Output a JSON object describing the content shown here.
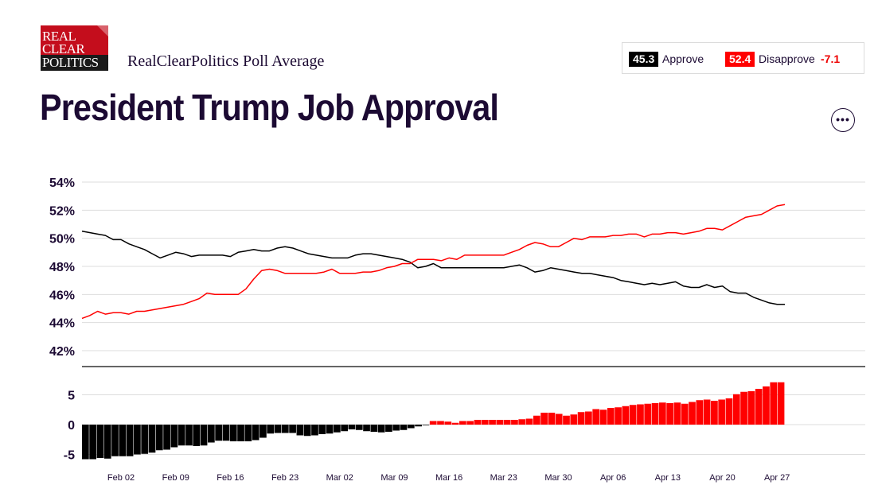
{
  "header": {
    "logo_line1": "REAL",
    "logo_line2": "CLEAR",
    "logo_line3": "POLITICS",
    "subtitle": "RealClearPolitics Poll Average",
    "title": "President Trump Job Approval",
    "more_label": "•••"
  },
  "legend": {
    "approve_value": "45.3",
    "approve_label": "Approve",
    "disapprove_value": "52.4",
    "disapprove_label": "Disapprove",
    "spread": "-7.1"
  },
  "colors": {
    "approve": "#000000",
    "disapprove": "#ff0000",
    "title": "#1c0a33"
  },
  "chart_data": [
    {
      "type": "line",
      "ylim": [
        42,
        54
      ],
      "yticks": [
        "42%",
        "44%",
        "46%",
        "48%",
        "50%",
        "52%",
        "54%"
      ],
      "ytick_values": [
        42,
        44,
        46,
        48,
        50,
        52,
        54
      ],
      "x_day_range": [
        0,
        91
      ],
      "x_ticks": [
        "Feb 02",
        "Feb 09",
        "Feb 16",
        "Feb 23",
        "Mar 02",
        "Mar 09",
        "Mar 16",
        "Mar 23",
        "Mar 30",
        "Apr 06",
        "Apr 13",
        "Apr 20",
        "Apr 27"
      ],
      "x_tick_days": [
        5,
        12,
        19,
        26,
        33,
        40,
        47,
        54,
        61,
        68,
        75,
        82,
        89
      ],
      "grid": true,
      "series": [
        {
          "name": "Approve",
          "color": "#000000",
          "points": [
            [
              0,
              50.5
            ],
            [
              2,
              50.3
            ],
            [
              3,
              50.2
            ],
            [
              4,
              49.9
            ],
            [
              5,
              49.9
            ],
            [
              6,
              49.6
            ],
            [
              7,
              49.4
            ],
            [
              8,
              49.2
            ],
            [
              9,
              48.9
            ],
            [
              10,
              48.6
            ],
            [
              11,
              48.8
            ],
            [
              12,
              49.0
            ],
            [
              13,
              48.9
            ],
            [
              14,
              48.7
            ],
            [
              15,
              48.8
            ],
            [
              16,
              48.8
            ],
            [
              17,
              48.8
            ],
            [
              18,
              48.8
            ],
            [
              19,
              48.7
            ],
            [
              20,
              49.0
            ],
            [
              21,
              49.1
            ],
            [
              22,
              49.2
            ],
            [
              23,
              49.1
            ],
            [
              24,
              49.1
            ],
            [
              25,
              49.3
            ],
            [
              26,
              49.4
            ],
            [
              27,
              49.3
            ],
            [
              28,
              49.1
            ],
            [
              29,
              48.9
            ],
            [
              30,
              48.8
            ],
            [
              31,
              48.7
            ],
            [
              32,
              48.6
            ],
            [
              33,
              48.6
            ],
            [
              34,
              48.6
            ],
            [
              35,
              48.8
            ],
            [
              36,
              48.9
            ],
            [
              37,
              48.9
            ],
            [
              38,
              48.8
            ],
            [
              39,
              48.7
            ],
            [
              40,
              48.6
            ],
            [
              41,
              48.5
            ],
            [
              42,
              48.3
            ],
            [
              43,
              47.9
            ],
            [
              44,
              48.0
            ],
            [
              45,
              48.2
            ],
            [
              46,
              47.9
            ],
            [
              47,
              47.9
            ],
            [
              48,
              47.9
            ],
            [
              49,
              47.9
            ],
            [
              50,
              47.9
            ],
            [
              51,
              47.9
            ],
            [
              52,
              47.9
            ],
            [
              53,
              47.9
            ],
            [
              54,
              47.9
            ],
            [
              55,
              48.0
            ],
            [
              56,
              48.1
            ],
            [
              57,
              47.9
            ],
            [
              58,
              47.6
            ],
            [
              59,
              47.7
            ],
            [
              60,
              47.9
            ],
            [
              61,
              47.8
            ],
            [
              62,
              47.7
            ],
            [
              63,
              47.6
            ],
            [
              64,
              47.5
            ],
            [
              65,
              47.5
            ],
            [
              66,
              47.4
            ],
            [
              67,
              47.3
            ],
            [
              68,
              47.2
            ],
            [
              69,
              47.0
            ],
            [
              70,
              46.9
            ],
            [
              71,
              46.8
            ],
            [
              72,
              46.7
            ],
            [
              73,
              46.8
            ],
            [
              74,
              46.7
            ],
            [
              75,
              46.8
            ],
            [
              76,
              46.9
            ],
            [
              77,
              46.6
            ],
            [
              78,
              46.5
            ],
            [
              79,
              46.5
            ],
            [
              80,
              46.7
            ],
            [
              81,
              46.5
            ],
            [
              82,
              46.6
            ],
            [
              83,
              46.2
            ],
            [
              84,
              46.1
            ],
            [
              85,
              46.1
            ],
            [
              86,
              45.8
            ],
            [
              87,
              45.6
            ],
            [
              88,
              45.4
            ],
            [
              89,
              45.3
            ],
            [
              90,
              45.3
            ]
          ]
        },
        {
          "name": "Disapprove",
          "color": "#ff0000",
          "points": [
            [
              0,
              44.3
            ],
            [
              1,
              44.5
            ],
            [
              2,
              44.8
            ],
            [
              3,
              44.6
            ],
            [
              4,
              44.7
            ],
            [
              5,
              44.7
            ],
            [
              6,
              44.6
            ],
            [
              7,
              44.8
            ],
            [
              8,
              44.8
            ],
            [
              9,
              44.9
            ],
            [
              10,
              45.0
            ],
            [
              11,
              45.1
            ],
            [
              12,
              45.2
            ],
            [
              13,
              45.3
            ],
            [
              14,
              45.5
            ],
            [
              15,
              45.7
            ],
            [
              16,
              46.1
            ],
            [
              17,
              46.0
            ],
            [
              18,
              46.0
            ],
            [
              19,
              46.0
            ],
            [
              20,
              46.0
            ],
            [
              21,
              46.4
            ],
            [
              22,
              47.1
            ],
            [
              23,
              47.7
            ],
            [
              24,
              47.8
            ],
            [
              25,
              47.7
            ],
            [
              26,
              47.5
            ],
            [
              27,
              47.5
            ],
            [
              28,
              47.5
            ],
            [
              29,
              47.5
            ],
            [
              30,
              47.5
            ],
            [
              31,
              47.6
            ],
            [
              32,
              47.8
            ],
            [
              33,
              47.5
            ],
            [
              34,
              47.5
            ],
            [
              35,
              47.5
            ],
            [
              36,
              47.6
            ],
            [
              37,
              47.6
            ],
            [
              38,
              47.7
            ],
            [
              39,
              47.9
            ],
            [
              40,
              48.0
            ],
            [
              41,
              48.2
            ],
            [
              42,
              48.2
            ],
            [
              43,
              48.5
            ],
            [
              44,
              48.5
            ],
            [
              45,
              48.5
            ],
            [
              46,
              48.4
            ],
            [
              47,
              48.6
            ],
            [
              48,
              48.5
            ],
            [
              49,
              48.8
            ],
            [
              50,
              48.8
            ],
            [
              51,
              48.8
            ],
            [
              52,
              48.8
            ],
            [
              53,
              48.8
            ],
            [
              54,
              48.8
            ],
            [
              55,
              49.0
            ],
            [
              56,
              49.2
            ],
            [
              57,
              49.5
            ],
            [
              58,
              49.7
            ],
            [
              59,
              49.6
            ],
            [
              60,
              49.4
            ],
            [
              61,
              49.4
            ],
            [
              62,
              49.7
            ],
            [
              63,
              50.0
            ],
            [
              64,
              49.9
            ],
            [
              65,
              50.1
            ],
            [
              66,
              50.1
            ],
            [
              67,
              50.1
            ],
            [
              68,
              50.2
            ],
            [
              69,
              50.2
            ],
            [
              70,
              50.3
            ],
            [
              71,
              50.3
            ],
            [
              72,
              50.1
            ],
            [
              73,
              50.3
            ],
            [
              74,
              50.3
            ],
            [
              75,
              50.4
            ],
            [
              76,
              50.4
            ],
            [
              77,
              50.3
            ],
            [
              78,
              50.4
            ],
            [
              79,
              50.5
            ],
            [
              80,
              50.7
            ],
            [
              81,
              50.7
            ],
            [
              82,
              50.6
            ],
            [
              83,
              50.9
            ],
            [
              84,
              51.2
            ],
            [
              85,
              51.5
            ],
            [
              86,
              51.6
            ],
            [
              87,
              51.7
            ],
            [
              88,
              52.0
            ],
            [
              89,
              52.3
            ],
            [
              90,
              52.4
            ]
          ]
        }
      ]
    },
    {
      "type": "bar",
      "title": "",
      "ylim": [
        -6,
        8
      ],
      "yticks": [
        "-5",
        "0",
        "5"
      ],
      "ytick_values": [
        -5,
        0,
        5
      ],
      "colors": {
        "positive": "#ff0000",
        "negative": "#000000"
      },
      "values": [
        -5.8,
        -5.8,
        -5.6,
        -5.7,
        -5.3,
        -5.3,
        -5.3,
        -5.0,
        -4.9,
        -4.7,
        -4.3,
        -4.2,
        -3.8,
        -3.5,
        -3.5,
        -3.6,
        -3.5,
        -3.0,
        -2.7,
        -2.7,
        -2.8,
        -2.8,
        -2.8,
        -2.6,
        -2.2,
        -1.5,
        -1.4,
        -1.4,
        -1.4,
        -1.8,
        -1.9,
        -1.8,
        -1.6,
        -1.5,
        -1.3,
        -1.1,
        -0.8,
        -0.9,
        -1.1,
        -1.2,
        -1.3,
        -1.2,
        -1.0,
        -0.9,
        -0.6,
        -0.3,
        -0.1,
        0.6,
        0.6,
        0.5,
        0.3,
        0.6,
        0.6,
        0.8,
        0.8,
        0.8,
        0.8,
        0.8,
        0.8,
        0.9,
        1.0,
        1.5,
        2.0,
        2.0,
        1.8,
        1.5,
        1.7,
        2.1,
        2.2,
        2.6,
        2.5,
        2.8,
        2.9,
        3.1,
        3.3,
        3.4,
        3.5,
        3.6,
        3.7,
        3.6,
        3.7,
        3.5,
        3.8,
        4.1,
        4.2,
        4.0,
        4.2,
        4.4,
        5.1,
        5.5,
        5.6,
        6.0,
        6.4,
        7.1,
        7.1
      ]
    }
  ]
}
